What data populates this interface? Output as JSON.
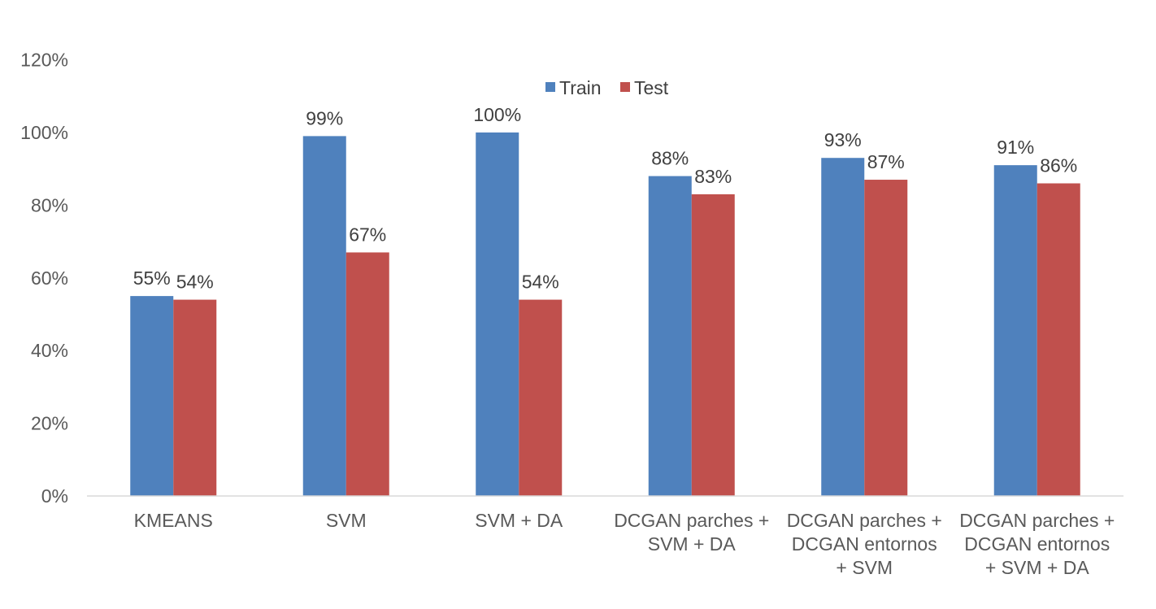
{
  "chart_data": {
    "type": "bar",
    "categories": [
      [
        "KMEANS"
      ],
      [
        "SVM"
      ],
      [
        "SVM + DA"
      ],
      [
        "DCGAN parches +",
        "SVM + DA"
      ],
      [
        "DCGAN parches +",
        "DCGAN entornos",
        "+ SVM"
      ],
      [
        "DCGAN parches +",
        "DCGAN entornos",
        "+ SVM + DA"
      ]
    ],
    "series": [
      {
        "name": "Train",
        "color": "#4F81BD",
        "values": [
          55,
          99,
          100,
          88,
          93,
          91
        ]
      },
      {
        "name": "Test",
        "color": "#C0504D",
        "values": [
          54,
          67,
          54,
          83,
          87,
          86
        ]
      }
    ],
    "data_labels": [
      [
        "55%",
        "99%",
        "100%",
        "88%",
        "93%",
        "91%"
      ],
      [
        "54%",
        "67%",
        "54%",
        "83%",
        "87%",
        "86%"
      ]
    ],
    "ylim": [
      0,
      120
    ],
    "yticks": [
      0,
      20,
      40,
      60,
      80,
      100,
      120
    ],
    "ytick_labels": [
      "0%",
      "20%",
      "40%",
      "60%",
      "80%",
      "100%",
      "120%"
    ],
    "grid": false,
    "legend_position": "top-center",
    "title": "",
    "xlabel": "",
    "ylabel": ""
  }
}
